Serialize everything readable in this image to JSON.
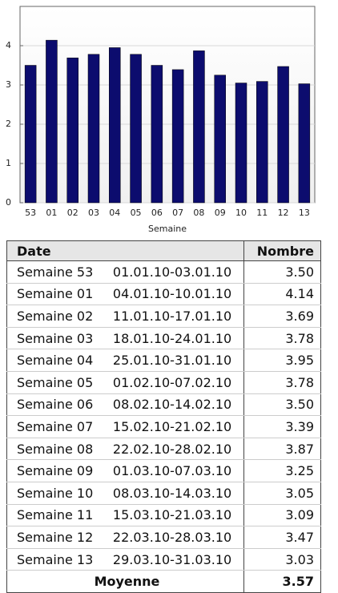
{
  "chart_data": {
    "type": "bar",
    "categories": [
      "53",
      "01",
      "02",
      "03",
      "04",
      "05",
      "06",
      "07",
      "08",
      "09",
      "10",
      "11",
      "12",
      "13"
    ],
    "values": [
      3.5,
      4.14,
      3.69,
      3.78,
      3.95,
      3.78,
      3.5,
      3.39,
      3.87,
      3.25,
      3.05,
      3.09,
      3.47,
      3.03
    ],
    "x_label": "Semaine",
    "color": "#0c0c6e",
    "ylim": [
      0,
      5
    ],
    "yticks": [
      0,
      1,
      2,
      3,
      4
    ],
    "grid": true
  },
  "table": {
    "headers": [
      "Date",
      "Nombre"
    ],
    "rows": [
      [
        "Semaine 53",
        "01.01.10-03.01.10",
        "3.50"
      ],
      [
        "Semaine 01",
        "04.01.10-10.01.10",
        "4.14"
      ],
      [
        "Semaine 02",
        "11.01.10-17.01.10",
        "3.69"
      ],
      [
        "Semaine 03",
        "18.01.10-24.01.10",
        "3.78"
      ],
      [
        "Semaine 04",
        "25.01.10-31.01.10",
        "3.95"
      ],
      [
        "Semaine 05",
        "01.02.10-07.02.10",
        "3.78"
      ],
      [
        "Semaine 06",
        "08.02.10-14.02.10",
        "3.50"
      ],
      [
        "Semaine 07",
        "15.02.10-21.02.10",
        "3.39"
      ],
      [
        "Semaine 08",
        "22.02.10-28.02.10",
        "3.87"
      ],
      [
        "Semaine 09",
        "01.03.10-07.03.10",
        "3.25"
      ],
      [
        "Semaine 10",
        "08.03.10-14.03.10",
        "3.05"
      ],
      [
        "Semaine 11",
        "15.03.10-21.03.10",
        "3.09"
      ],
      [
        "Semaine 12",
        "22.03.10-28.03.10",
        "3.47"
      ],
      [
        "Semaine 13",
        "29.03.10-31.03.10",
        "3.03"
      ]
    ],
    "footer": [
      "Moyenne",
      "3.57"
    ]
  }
}
